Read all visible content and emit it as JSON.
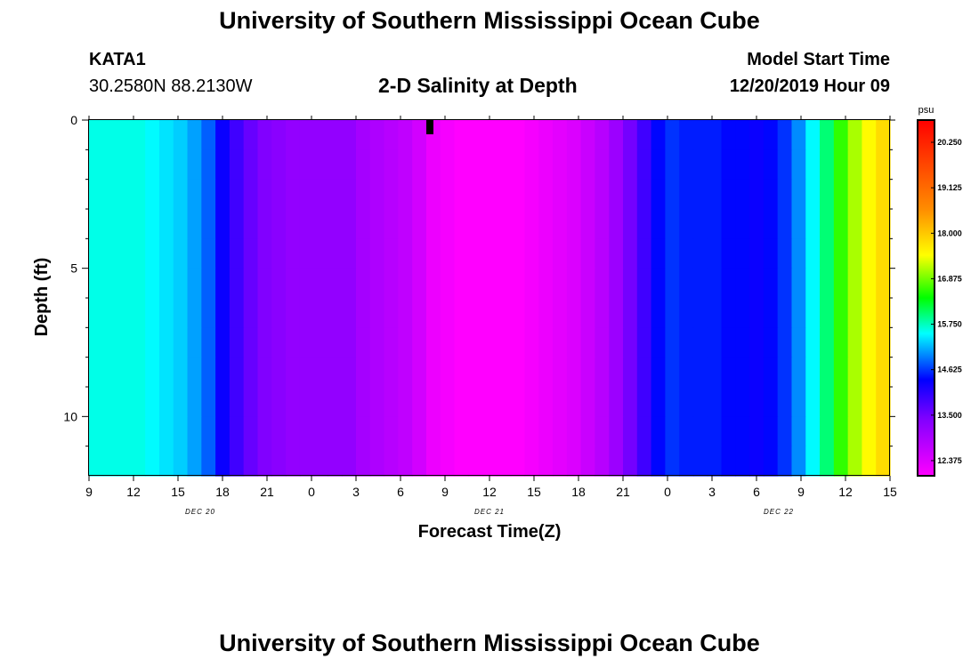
{
  "header": {
    "title": "University of Southern Mississippi Ocean Cube",
    "station_name": "KATA1",
    "station_coords": "30.2580N 88.2130W",
    "chart_title": "2-D Salinity at Depth",
    "model_label": "Model Start Time",
    "model_time": "12/20/2019 Hour 09"
  },
  "footer": {
    "title": "University of Southern Mississippi Ocean Cube"
  },
  "chart_data": {
    "type": "heatmap",
    "title": "2-D Salinity at Depth",
    "xlabel": "Forecast Time(Z)",
    "ylabel": "Depth (ft)",
    "x_tick_labels": [
      "9",
      "12",
      "15",
      "18",
      "21",
      "0",
      "3",
      "6",
      "9",
      "12",
      "15",
      "18",
      "21",
      "0",
      "3",
      "6",
      "9",
      "12",
      "15"
    ],
    "date_labels": [
      "DEC 20",
      "DEC 21",
      "DEC 22"
    ],
    "y_tick_labels": [
      "0",
      "5",
      "10"
    ],
    "ylim": [
      0,
      12
    ],
    "colorbar": {
      "unit": "psu",
      "labels": [
        "20.250",
        "19.125",
        "18.000",
        "16.875",
        "15.750",
        "14.625",
        "13.500",
        "12.375"
      ],
      "min": 12.0,
      "max": 20.8
    },
    "colors": {
      "grid_line": "#000000",
      "marker": "#000000"
    },
    "depths_ft": [
      0,
      1,
      2,
      3,
      4,
      5,
      6,
      7,
      8,
      9,
      10,
      11
    ],
    "surface_salinity_by_hour": [
      15.6,
      15.6,
      15.6,
      15.6,
      15.5,
      15.4,
      15.3,
      15.1,
      14.8,
      14.3,
      13.9,
      13.6,
      13.4,
      13.3,
      13.2,
      13.2,
      13.2,
      13.2,
      13.2,
      13.0,
      12.9,
      12.8,
      12.7,
      12.5,
      12.2,
      12.1,
      12.0,
      12.0,
      12.0,
      12.0,
      12.0,
      12.1,
      12.2,
      12.3,
      12.4,
      12.6,
      12.8,
      13.1,
      13.5,
      13.9,
      14.4,
      14.6,
      14.5,
      14.5,
      14.5,
      14.4,
      14.4,
      14.3,
      14.4,
      14.6,
      15.0,
      15.5,
      16.0,
      16.6,
      17.1,
      17.5,
      17.8
    ]
  }
}
